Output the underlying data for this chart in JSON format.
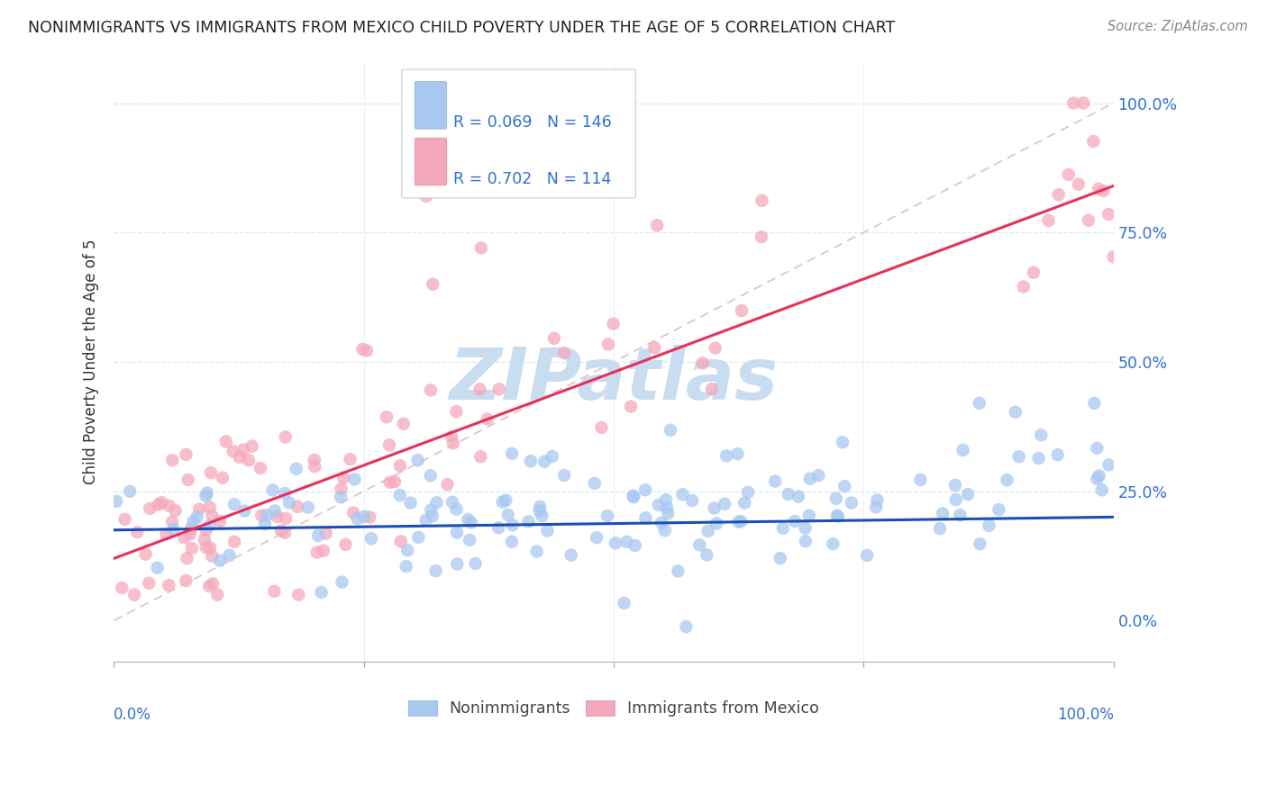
{
  "title": "NONIMMIGRANTS VS IMMIGRANTS FROM MEXICO CHILD POVERTY UNDER THE AGE OF 5 CORRELATION CHART",
  "source": "Source: ZipAtlas.com",
  "ylabel": "Child Poverty Under the Age of 5",
  "legend_label_blue": "Nonimmigrants",
  "legend_label_pink": "Immigrants from Mexico",
  "legend_r_blue": "R = 0.069",
  "legend_n_blue": "N = 146",
  "legend_r_pink": "R = 0.702",
  "legend_n_pink": "N = 114",
  "color_blue": "#a8c8f0",
  "color_pink": "#f5a8bc",
  "color_blue_line": "#1a4fba",
  "color_pink_line": "#e8305a",
  "color_diag": "#d8b0b8",
  "watermark_color": "#c8ddf0",
  "grid_color": "#d8e8f0",
  "blue_trend_intercept": 0.175,
  "blue_trend_slope": 0.025,
  "pink_trend_intercept": 0.12,
  "pink_trend_slope": 0.72
}
